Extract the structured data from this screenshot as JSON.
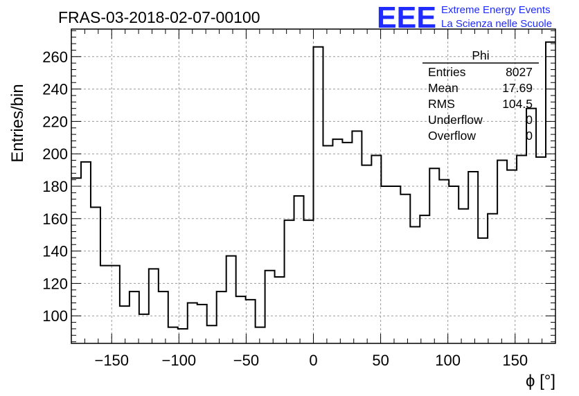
{
  "chart_data": {
    "type": "bar",
    "title": "FRAS-03-2018-02-07-00100",
    "xlabel": "ϕ [°]",
    "ylabel": "Entries/bin",
    "xlim": [
      -180,
      180
    ],
    "ylim": [
      83,
      277
    ],
    "grid": true,
    "x_ticks": [
      -150,
      -100,
      -50,
      0,
      50,
      100,
      150
    ],
    "x_tick_labels": [
      "−150",
      "−100",
      "−50",
      "0",
      "50",
      "100",
      "150"
    ],
    "y_ticks": [
      100,
      120,
      140,
      160,
      180,
      200,
      220,
      240,
      260
    ],
    "y_tick_labels": [
      "100",
      "120",
      "140",
      "160",
      "180",
      "200",
      "220",
      "240",
      "260"
    ],
    "bin_edges_start": -180,
    "bin_width": 7.2,
    "values": [
      185,
      195,
      167,
      131,
      131,
      106,
      115,
      101,
      129,
      115,
      93,
      92,
      108,
      107,
      94,
      115,
      137,
      112,
      110,
      93,
      128,
      124,
      159,
      174,
      159,
      266,
      205,
      209,
      207,
      214,
      193,
      199,
      180,
      180,
      175,
      155,
      162,
      191,
      184,
      180,
      166,
      189,
      148,
      163,
      196,
      190,
      199,
      228,
      198,
      269
    ],
    "stats_box": {
      "name": "Phi",
      "rows": [
        {
          "label": "Entries",
          "value": "8027"
        },
        {
          "label": "Mean",
          "value": "17.69"
        },
        {
          "label": "RMS",
          "value": "104.5"
        },
        {
          "label": "Underflow",
          "value": "0"
        },
        {
          "label": "Overflow",
          "value": "0"
        }
      ]
    },
    "logo": {
      "mark": "EEE",
      "line1": "Extreme Energy Events",
      "line2": "La Scienza nelle Scuole"
    },
    "colors": {
      "line": "#000000",
      "grid": "#9a9a9a",
      "logo": "#1f2bff"
    }
  }
}
